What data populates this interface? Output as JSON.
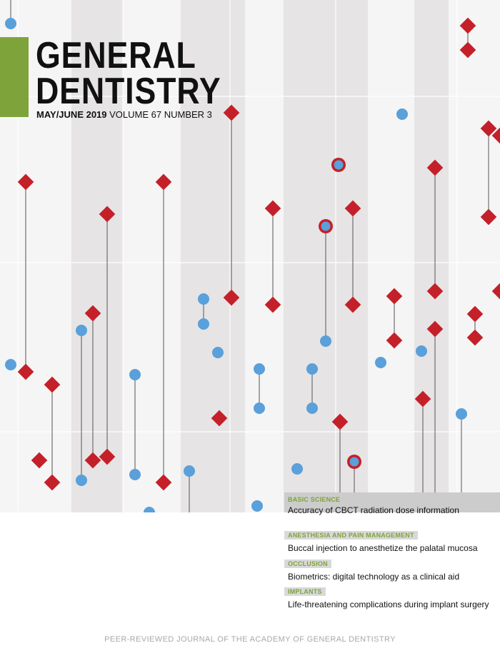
{
  "cover": {
    "title_line1": "GENERAL",
    "title_line2": "DENTISTRY",
    "issue_date": "MAY/JUNE 2019",
    "issue_volume": "VOLUME 67 NUMBER 3",
    "accent_color": "#7ea33b",
    "marker_red": "#c4202a",
    "marker_blue": "#5aa0da"
  },
  "articles": [
    {
      "category": "BASIC SCIENCE",
      "headline": "Accuracy of CBCT radiation dose information"
    },
    {
      "category": "ANESTHESIA AND PAIN MANAGEMENT",
      "headline": "Buccal injection to anesthetize the palatal mucosa"
    },
    {
      "category": "OCCLUSION",
      "headline": "Biometrics: digital technology as a clinical aid"
    },
    {
      "category": "IMPLANTS",
      "headline": "Life-threatening complications during implant surgery"
    }
  ],
  "footer": "PEER-REVIEWED JOURNAL OF THE ACADEMY OF GENERAL DENTISTRY"
}
